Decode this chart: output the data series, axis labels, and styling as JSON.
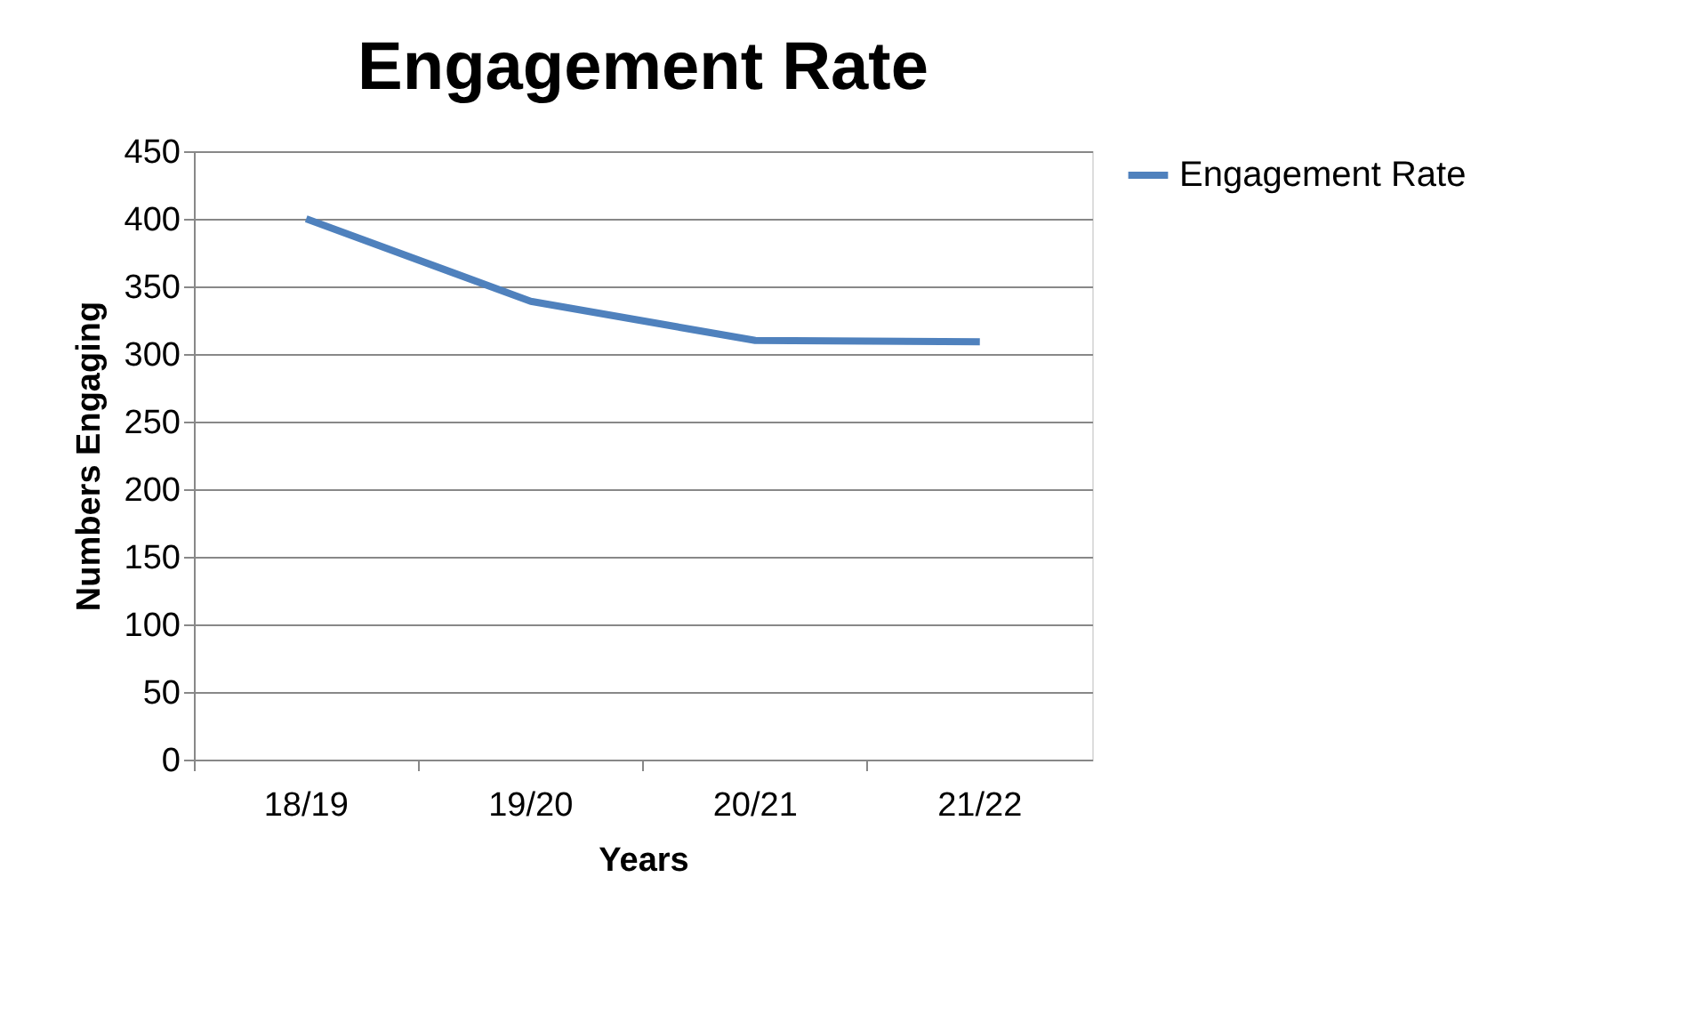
{
  "chart_data": {
    "type": "line",
    "title": "Engagement Rate",
    "xlabel": "Years",
    "ylabel": "Numbers Engaging",
    "categories": [
      "18/19",
      "19/20",
      "20/21",
      "21/22"
    ],
    "series": [
      {
        "name": "Engagement Rate",
        "color": "#4f81bd",
        "values": [
          400,
          339,
          310,
          309
        ]
      }
    ],
    "ylim": [
      0,
      450
    ],
    "yticks": [
      0,
      50,
      100,
      150,
      200,
      250,
      300,
      350,
      400,
      450
    ],
    "grid": "y",
    "legend": "right",
    "marker": "none",
    "line_style": "solid"
  }
}
